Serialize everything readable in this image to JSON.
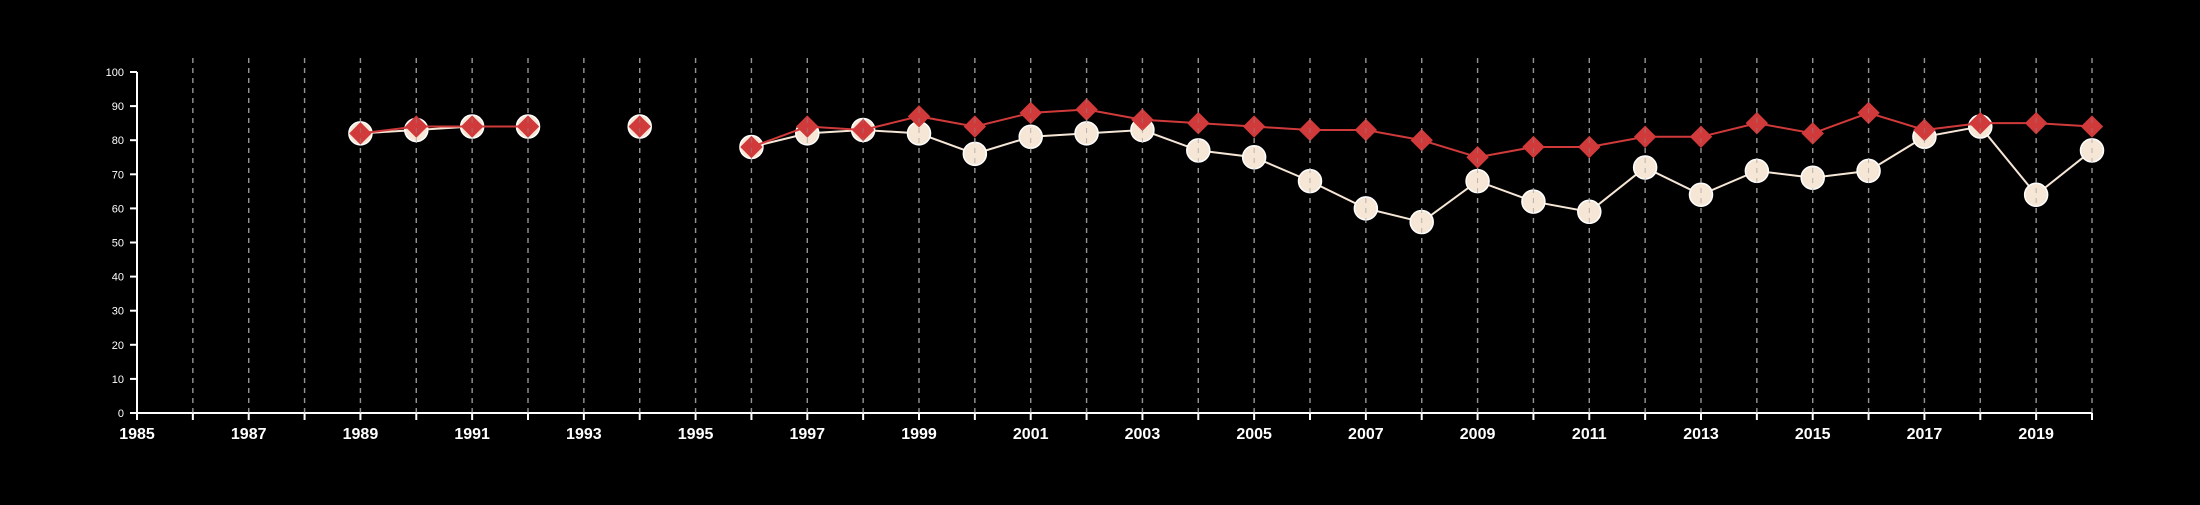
{
  "chart_data": {
    "type": "line",
    "title": "",
    "xlabel": "",
    "ylabel": "",
    "xlim": [
      1985,
      2020
    ],
    "ylim": [
      0,
      100
    ],
    "x_ticks": [
      "1985",
      "1987",
      "1989",
      "1991",
      "1993",
      "1995",
      "1997",
      "1999",
      "2001",
      "2003",
      "2005",
      "2007",
      "2009",
      "2011",
      "2013",
      "2015",
      "2017",
      "2019"
    ],
    "y_ticks": [
      "0",
      "10",
      "20",
      "30",
      "40",
      "50",
      "60",
      "70",
      "80",
      "90",
      "100"
    ],
    "vertical_gridlines": "dashed, every year",
    "x": [
      1989,
      1990,
      1991,
      1992,
      1993,
      1994,
      1995,
      1996,
      1997,
      1998,
      1999,
      2000,
      2001,
      2002,
      2003,
      2004,
      2005,
      2006,
      2007,
      2008,
      2009,
      2010,
      2011,
      2012,
      2013,
      2014,
      2015,
      2016,
      2017,
      2018,
      2019,
      2020
    ],
    "series": [
      {
        "color": "#f5e6d6",
        "marker": "circle",
        "values": [
          82,
          83,
          84,
          84,
          null,
          84,
          null,
          78,
          82,
          83,
          82,
          76,
          81,
          82,
          83,
          77,
          75,
          68,
          60,
          56,
          68,
          62,
          59,
          72,
          64,
          71,
          69,
          71,
          81,
          84,
          64,
          77
        ]
      },
      {
        "color": "#d13a3a",
        "marker": "diamond",
        "values": [
          82,
          84,
          84,
          84,
          null,
          84,
          null,
          78,
          84,
          83,
          87,
          84,
          88,
          89,
          86,
          85,
          84,
          83,
          83,
          80,
          75,
          78,
          78,
          81,
          81,
          85,
          82,
          88,
          83,
          85,
          85,
          84
        ]
      }
    ]
  }
}
